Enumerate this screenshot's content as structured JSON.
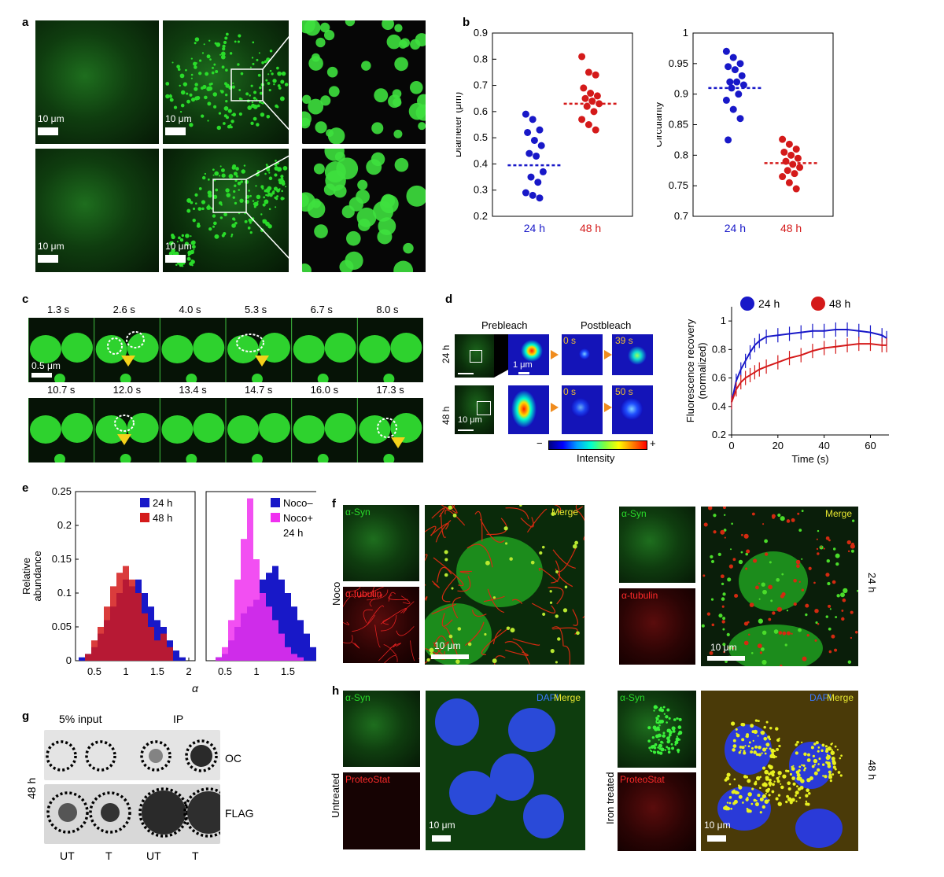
{
  "panels": {
    "a": "a",
    "b": "b",
    "c": "c",
    "d": "d",
    "e": "e",
    "f": "f",
    "g": "g",
    "h": "h"
  },
  "scale_10um": "10 μm",
  "scale_05um": "0.5 μm",
  "scale_1um": "1 μm",
  "c_times_top": [
    "1.3 s",
    "2.6 s",
    "4.0 s",
    "5.3 s",
    "6.7 s",
    "8.0 s"
  ],
  "c_times_bottom": [
    "10.7 s",
    "12.0 s",
    "13.4 s",
    "14.7 s",
    "16.0 s",
    "17.3 s"
  ],
  "d": {
    "prebleach": "Prebleach",
    "postbleach": "Postbleach",
    "row1": "24 h",
    "row2": "48 h",
    "t0": "0 s",
    "t39": "39 s",
    "t50": "50 s",
    "intensity": "Intensity",
    "minus": "−",
    "plus": "+"
  },
  "f": {
    "noco": "Noco",
    "syn": "α-Syn",
    "tubulin": "α-tubulin",
    "merge": "Merge",
    "side": "24 h"
  },
  "h": {
    "untreated": "Untreated",
    "iron": "Iron treated",
    "syn": "α-Syn",
    "proteostat": "ProteoStat",
    "dapi": "DAPI",
    "merge": "Merge",
    "side": "48 h"
  },
  "g": {
    "input": "5% input",
    "ip": "IP",
    "oc": "OC",
    "flag": "FLAG",
    "side": "48 h",
    "cols": [
      "UT",
      "T",
      "UT",
      "T"
    ]
  },
  "colors": {
    "blue": "#1818c8",
    "red": "#d41a1a",
    "green": "#2adc2a",
    "magenta": "#f030f0"
  },
  "chart_data": [
    {
      "type": "scatter",
      "panel": "b",
      "ylabel": "Diameter (μm)",
      "ylim": [
        0.2,
        0.9
      ],
      "yticks": [
        "0.2",
        "0.3",
        "0.4",
        "0.5",
        "0.6",
        "0.7",
        "0.8",
        "0.9"
      ],
      "categories": [
        "24 h",
        "48 h"
      ],
      "series": [
        {
          "name": "24 h",
          "mean": 0.395,
          "values": [
            0.59,
            0.57,
            0.53,
            0.52,
            0.49,
            0.47,
            0.44,
            0.43,
            0.37,
            0.35,
            0.33,
            0.29,
            0.28,
            0.27
          ]
        },
        {
          "name": "48 h",
          "mean": 0.63,
          "values": [
            0.81,
            0.75,
            0.74,
            0.69,
            0.67,
            0.66,
            0.65,
            0.64,
            0.63,
            0.62,
            0.6,
            0.57,
            0.55,
            0.53
          ]
        }
      ]
    },
    {
      "type": "scatter",
      "panel": "b",
      "ylabel": "Circularity",
      "ylim": [
        0.7,
        1.0
      ],
      "yticks": [
        "0.7",
        "0.75",
        "0.8",
        "0.85",
        "0.9",
        "0.95",
        "1"
      ],
      "categories": [
        "24 h",
        "48 h"
      ],
      "series": [
        {
          "name": "24 h",
          "mean": 0.91,
          "values": [
            0.97,
            0.96,
            0.95,
            0.945,
            0.94,
            0.93,
            0.92,
            0.92,
            0.915,
            0.91,
            0.9,
            0.89,
            0.875,
            0.86,
            0.825
          ]
        },
        {
          "name": "48 h",
          "mean": 0.787,
          "values": [
            0.826,
            0.818,
            0.81,
            0.805,
            0.8,
            0.795,
            0.79,
            0.785,
            0.78,
            0.775,
            0.77,
            0.765,
            0.755,
            0.745
          ]
        }
      ]
    },
    {
      "type": "line",
      "panel": "d",
      "xlabel": "Time (s)",
      "ylabel": "Fluorescence recovery (normalized)",
      "xlim": [
        0,
        68
      ],
      "ylim": [
        0.2,
        1.1
      ],
      "xticks": [
        "0",
        "20",
        "40",
        "60"
      ],
      "yticks": [
        "0.2",
        "0.4",
        "0.6",
        "0.8",
        "1"
      ],
      "series": [
        {
          "name": "24 h",
          "x": [
            0,
            2,
            4,
            6,
            8,
            10,
            12,
            15,
            20,
            25,
            30,
            35,
            40,
            45,
            50,
            55,
            60,
            65,
            67
          ],
          "y": [
            0.43,
            0.58,
            0.66,
            0.72,
            0.78,
            0.83,
            0.86,
            0.89,
            0.9,
            0.91,
            0.92,
            0.93,
            0.93,
            0.94,
            0.94,
            0.93,
            0.92,
            0.9,
            0.88
          ]
        },
        {
          "name": "48 h",
          "x": [
            0,
            2,
            4,
            6,
            8,
            10,
            12,
            15,
            20,
            25,
            30,
            35,
            40,
            45,
            50,
            55,
            60,
            65,
            67
          ],
          "y": [
            0.43,
            0.52,
            0.57,
            0.6,
            0.62,
            0.64,
            0.66,
            0.68,
            0.71,
            0.74,
            0.76,
            0.79,
            0.81,
            0.82,
            0.83,
            0.84,
            0.84,
            0.83,
            0.83
          ]
        }
      ]
    },
    {
      "type": "bar",
      "panel": "e",
      "ylabel": "Relative abundance",
      "xlabel": "α",
      "ylim": [
        0,
        0.25
      ],
      "xlim": [
        0.2,
        2.1
      ],
      "yticks": [
        "0",
        "0.05",
        "0.1",
        "0.15",
        "0.2",
        "0.25"
      ],
      "xticks": [
        "0.5",
        "1",
        "1.5",
        "2"
      ],
      "categories": [
        0.3,
        0.4,
        0.5,
        0.6,
        0.7,
        0.8,
        0.9,
        1.0,
        1.1,
        1.2,
        1.3,
        1.4,
        1.5,
        1.6,
        1.7,
        1.8,
        1.9
      ],
      "series": [
        {
          "name": "24 h",
          "values": [
            0.005,
            0.01,
            0.02,
            0.04,
            0.06,
            0.08,
            0.1,
            0.12,
            0.11,
            0.12,
            0.1,
            0.08,
            0.06,
            0.05,
            0.03,
            0.015,
            0.005
          ]
        },
        {
          "name": "48 h",
          "values": [
            0.0,
            0.01,
            0.03,
            0.05,
            0.08,
            0.11,
            0.13,
            0.14,
            0.12,
            0.1,
            0.07,
            0.05,
            0.03,
            0.04,
            0.02,
            0.0,
            0.0
          ]
        }
      ]
    },
    {
      "type": "bar",
      "panel": "e",
      "subtitle": "24 h",
      "ylim": [
        0,
        0.25
      ],
      "xlim": [
        0.2,
        2.1
      ],
      "xticks": [
        "0.5",
        "1",
        "1.5",
        "2"
      ],
      "categories": [
        0.4,
        0.5,
        0.6,
        0.7,
        0.8,
        0.9,
        1.0,
        1.1,
        1.2,
        1.3,
        1.4,
        1.5,
        1.6,
        1.7,
        1.8,
        1.9
      ],
      "series": [
        {
          "name": "Noco–",
          "values": [
            0.005,
            0.01,
            0.03,
            0.05,
            0.07,
            0.08,
            0.09,
            0.12,
            0.13,
            0.14,
            0.12,
            0.1,
            0.08,
            0.06,
            0.04,
            0.02
          ]
        },
        {
          "name": "Noco+",
          "values": [
            0.005,
            0.02,
            0.06,
            0.12,
            0.18,
            0.24,
            0.15,
            0.1,
            0.08,
            0.06,
            0.04,
            0.02,
            0.01,
            0.005,
            0.0,
            0.0
          ]
        }
      ]
    }
  ]
}
